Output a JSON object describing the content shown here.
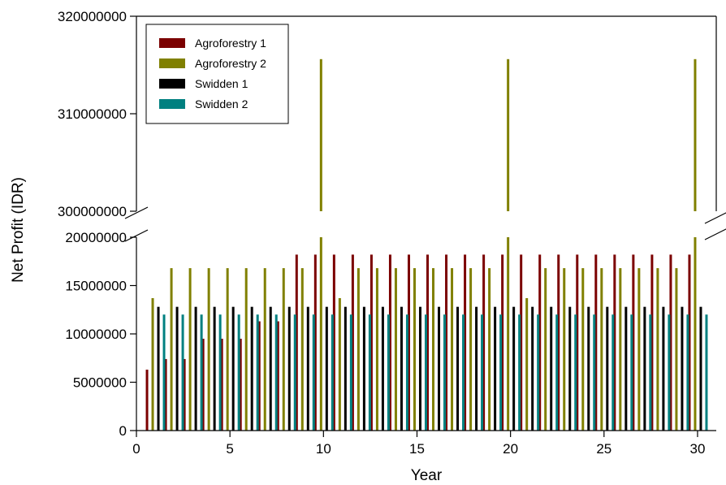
{
  "chart_data": {
    "type": "bar",
    "xlabel": "Year",
    "ylabel": "Net Profit (IDR)",
    "xlim": [
      0,
      31
    ],
    "x_ticks": [
      0,
      5,
      10,
      15,
      20,
      25,
      30
    ],
    "broken_y_axis": true,
    "ylim_lower": [
      0,
      20000000
    ],
    "ylim_upper": [
      300000000,
      320000000
    ],
    "y_ticks_lower": [
      0,
      5000000,
      10000000,
      15000000,
      20000000
    ],
    "y_ticks_upper": [
      300000000,
      310000000,
      320000000
    ],
    "y_tick_labels_lower": [
      "0",
      "5000000",
      "10000000",
      "15000000",
      "20000000"
    ],
    "y_tick_labels_upper": [
      "300000000",
      "310000000",
      "320000000"
    ],
    "legend_position": "top-left",
    "x": [
      1,
      2,
      3,
      4,
      5,
      6,
      7,
      8,
      9,
      10,
      11,
      12,
      13,
      14,
      15,
      16,
      17,
      18,
      19,
      20,
      21,
      22,
      23,
      24,
      25,
      26,
      27,
      28,
      29,
      30
    ],
    "series": [
      {
        "name": "Agroforestry 1",
        "color": "#7b0000",
        "values": [
          6300000,
          7400000,
          7400000,
          9500000,
          9500000,
          9500000,
          11300000,
          11300000,
          18200000,
          18200000,
          18200000,
          18200000,
          18200000,
          18200000,
          18200000,
          18200000,
          18200000,
          18200000,
          18200000,
          18200000,
          18200000,
          18200000,
          18200000,
          18200000,
          18200000,
          18200000,
          18200000,
          18200000,
          18200000,
          18200000
        ]
      },
      {
        "name": "Agroforestry 2",
        "color": "#808000",
        "values": [
          13700000,
          16800000,
          16800000,
          16800000,
          16800000,
          16800000,
          16800000,
          16800000,
          16800000,
          315600000,
          13700000,
          16800000,
          16800000,
          16800000,
          16800000,
          16800000,
          16800000,
          16800000,
          16800000,
          315600000,
          13700000,
          16800000,
          16800000,
          16800000,
          16800000,
          16800000,
          16800000,
          16800000,
          16800000,
          315600000
        ]
      },
      {
        "name": "Swidden 1",
        "color": "#000000",
        "values": [
          12800000,
          12800000,
          12800000,
          12800000,
          12800000,
          12800000,
          12800000,
          12800000,
          12800000,
          12800000,
          12800000,
          12800000,
          12800000,
          12800000,
          12800000,
          12800000,
          12800000,
          12800000,
          12800000,
          12800000,
          12800000,
          12800000,
          12800000,
          12800000,
          12800000,
          12800000,
          12800000,
          12800000,
          12800000,
          12800000
        ]
      },
      {
        "name": "Swidden 2",
        "color": "#008080",
        "values": [
          12000000,
          12000000,
          12000000,
          12000000,
          12000000,
          12000000,
          12000000,
          12000000,
          12000000,
          12000000,
          12000000,
          12000000,
          12000000,
          12000000,
          12000000,
          12000000,
          12000000,
          12000000,
          12000000,
          12000000,
          12000000,
          12000000,
          12000000,
          12000000,
          12000000,
          12000000,
          12000000,
          12000000,
          12000000,
          12000000
        ]
      }
    ]
  }
}
